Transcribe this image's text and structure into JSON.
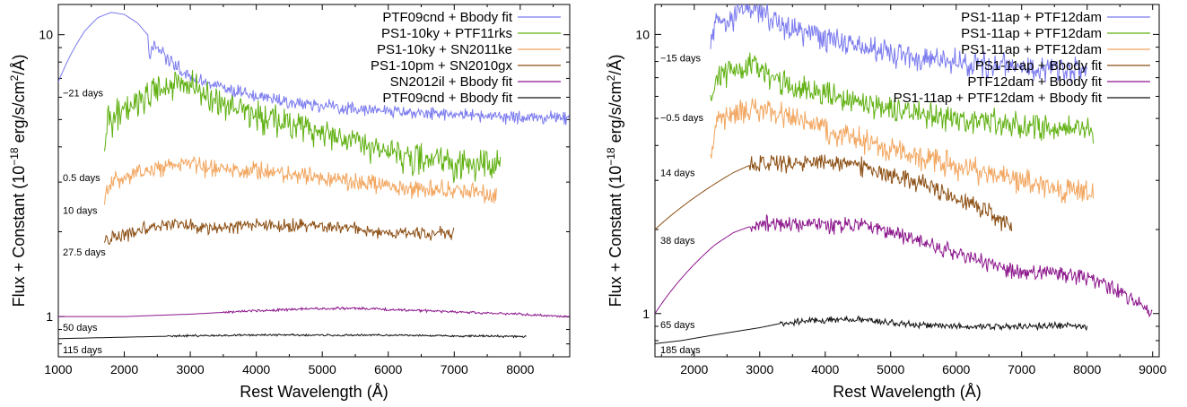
{
  "chart_data": [
    {
      "type": "line",
      "title": "",
      "xlabel": "Rest Wavelength (Å)",
      "ylabel": "Flux + Constant (10^-18 erg/s/cm^2/Å)",
      "xlim": [
        1000,
        8750
      ],
      "ylim": [
        0.72,
        12.8
      ],
      "yscale": "log",
      "xticks": [
        1000,
        2000,
        3000,
        4000,
        5000,
        6000,
        7000,
        8000
      ],
      "yticks": [
        1,
        10
      ],
      "legend_position": "top-right",
      "series": [
        {
          "name": "PTF09cnd + Bbody fit",
          "color": "#7a7aef",
          "label": "−21 days",
          "x": [
            1000,
            1200,
            1400,
            1600,
            1800,
            2000,
            2200,
            2350,
            2380,
            2420,
            2500,
            2700,
            3000,
            3300,
            3600,
            4000,
            4500,
            5000,
            5500,
            6000,
            6500,
            7000,
            7500,
            8000,
            8500,
            8750
          ],
          "y": [
            6.8,
            8.6,
            10.3,
            11.5,
            12.0,
            11.8,
            11.0,
            10.0,
            8.3,
            9.2,
            9.0,
            8.0,
            7.1,
            6.7,
            6.4,
            6.05,
            5.8,
            5.6,
            5.45,
            5.35,
            5.25,
            5.2,
            5.15,
            5.1,
            5.1,
            5.05
          ],
          "noise": 0.05,
          "noise_start": 2350
        },
        {
          "name": "PS1-10ky + PTF11rks",
          "color": "#5fb010",
          "label": "0.5 days",
          "x": [
            1700,
            1750,
            1800,
            2000,
            2200,
            2500,
            2800,
            3000,
            3200,
            3500,
            4000,
            4500,
            5000,
            5500,
            6000,
            6500,
            7000,
            7500,
            7700
          ],
          "y": [
            3.4,
            5.2,
            5.0,
            5.4,
            5.7,
            6.4,
            6.7,
            6.6,
            6.2,
            5.6,
            5.2,
            4.9,
            4.4,
            4.2,
            3.9,
            3.6,
            3.5,
            3.4,
            3.4
          ],
          "noise": 0.12
        },
        {
          "name": "PS1-10ky + SN2011ke",
          "color": "#f2a55e",
          "label": "10 days",
          "x": [
            1700,
            1800,
            2000,
            2300,
            2600,
            2800,
            3000,
            3200,
            3500,
            4000,
            4500,
            5000,
            5500,
            6000,
            6500,
            7000,
            7500,
            7650
          ],
          "y": [
            2.6,
            3.0,
            3.1,
            3.3,
            3.35,
            3.45,
            3.5,
            3.4,
            3.3,
            3.3,
            3.2,
            3.1,
            3.0,
            2.9,
            2.85,
            2.8,
            2.75,
            2.75
          ],
          "noise": 0.07
        },
        {
          "name": "PS1-10pm + SN2010gx",
          "color": "#8c4f14",
          "label": "27.5 days",
          "x": [
            1700,
            1800,
            2000,
            2300,
            2600,
            2800,
            3000,
            3300,
            3500,
            4000,
            4500,
            5000,
            5500,
            6000,
            6500,
            7000
          ],
          "y": [
            1.85,
            1.9,
            1.95,
            2.05,
            2.1,
            2.15,
            2.1,
            2.05,
            2.05,
            2.1,
            2.1,
            2.1,
            2.05,
            1.98,
            1.98,
            1.98
          ],
          "noise": 0.05
        },
        {
          "name": "SN2012il + Bbody fit",
          "color": "#8c168c",
          "label": "50 days",
          "x": [
            1000,
            2000,
            3000,
            4000,
            5000,
            5500,
            6000,
            7000,
            8000,
            8750
          ],
          "y": [
            1.0,
            1.0,
            1.02,
            1.05,
            1.07,
            1.07,
            1.06,
            1.04,
            1.02,
            1.0
          ],
          "noise": 0.01,
          "noise_start": 3500
        },
        {
          "name": "PTF09cnd + Bbody fit",
          "color": "#111111",
          "label": "115 days",
          "x": [
            1000,
            2000,
            2500,
            3000,
            4000,
            5000,
            6000,
            7000,
            8000,
            8100
          ],
          "y": [
            0.835,
            0.845,
            0.85,
            0.855,
            0.86,
            0.86,
            0.86,
            0.855,
            0.85,
            0.85
          ],
          "noise": 0.008,
          "noise_start": 2650
        }
      ]
    },
    {
      "type": "line",
      "title": "",
      "xlabel": "Rest Wavelength (Å)",
      "ylabel": "Flux + Constant (10^-18 erg/s/cm^2/Å)",
      "xlim": [
        1400,
        9100
      ],
      "ylim": [
        0.7,
        12.8
      ],
      "yscale": "log",
      "xticks": [
        2000,
        3000,
        4000,
        5000,
        6000,
        7000,
        8000,
        9000
      ],
      "yticks": [
        1,
        10
      ],
      "legend_position": "top-right",
      "series": [
        {
          "name": "PS1-11ap + PTF12dam",
          "color": "#7a7aef",
          "label": "−15 days",
          "x": [
            2250,
            2350,
            2500,
            2700,
            2900,
            3100,
            3500,
            4000,
            4500,
            5000,
            5500,
            6000,
            6500,
            7000,
            7500,
            8000
          ],
          "y": [
            9.0,
            11.5,
            11.0,
            11.8,
            12.3,
            11.8,
            10.5,
            9.6,
            9.0,
            8.6,
            8.3,
            8.0,
            7.8,
            7.6,
            7.5,
            7.5
          ],
          "noise": 0.1
        },
        {
          "name": "PS1-11ap + PTF12dam",
          "color": "#5fb010",
          "label": "−0.5 days",
          "x": [
            2250,
            2350,
            2600,
            2900,
            3200,
            3500,
            4000,
            4500,
            5000,
            5500,
            6000,
            6500,
            7000,
            7500,
            8100
          ],
          "y": [
            5.5,
            7.0,
            7.6,
            7.8,
            7.0,
            6.5,
            6.1,
            5.7,
            5.4,
            5.2,
            5.0,
            4.9,
            4.7,
            4.6,
            4.5
          ],
          "noise": 0.1
        },
        {
          "name": "PS1-11ap + PTF12dam",
          "color": "#f2a55e",
          "label": "14 days",
          "x": [
            2250,
            2350,
            2600,
            2900,
            3200,
            3500,
            4000,
            4500,
            5000,
            5500,
            6000,
            6500,
            7000,
            7500,
            8000,
            8100
          ],
          "y": [
            3.5,
            5.0,
            5.2,
            5.4,
            5.3,
            5.0,
            4.5,
            4.2,
            3.9,
            3.6,
            3.4,
            3.2,
            3.0,
            2.8,
            2.75,
            2.7
          ],
          "noise": 0.1
        },
        {
          "name": "PS1-11ap + Bbody fit",
          "color": "#8c4f14",
          "label": "38 days",
          "x": [
            1400,
            1700,
            2000,
            2300,
            2600,
            2850,
            3000,
            3500,
            4000,
            4500,
            5000,
            5500,
            6000,
            6500,
            6850
          ],
          "y": [
            2.0,
            2.3,
            2.6,
            2.9,
            3.2,
            3.4,
            3.45,
            3.4,
            3.5,
            3.4,
            3.1,
            2.9,
            2.6,
            2.3,
            2.0
          ],
          "noise": 0.07,
          "noise_start": 2850
        },
        {
          "name": "PTF12dam + Bbody fit",
          "color": "#8c168c",
          "label": "65 days",
          "x": [
            1400,
            1700,
            2000,
            2300,
            2600,
            2850,
            3000,
            3500,
            4000,
            4500,
            5000,
            5500,
            6000,
            6500,
            7000,
            7500,
            8000,
            8500,
            9000
          ],
          "y": [
            1.0,
            1.25,
            1.5,
            1.75,
            1.95,
            2.05,
            2.1,
            2.1,
            2.05,
            2.1,
            1.95,
            1.8,
            1.65,
            1.5,
            1.4,
            1.4,
            1.35,
            1.2,
            1.0
          ],
          "noise": 0.06,
          "noise_start": 2850
        },
        {
          "name": "PS1-11ap + PTF12dam + Bbody fit",
          "color": "#111111",
          "label": "185 days",
          "x": [
            1400,
            1800,
            2200,
            2600,
            3000,
            3300,
            3500,
            4000,
            4500,
            5000,
            5500,
            6000,
            6500,
            7000,
            7500,
            8000
          ],
          "y": [
            0.78,
            0.8,
            0.83,
            0.86,
            0.89,
            0.92,
            0.93,
            0.95,
            0.95,
            0.93,
            0.91,
            0.9,
            0.9,
            0.9,
            0.91,
            0.9
          ],
          "noise": 0.025,
          "noise_start": 3300
        }
      ]
    }
  ]
}
